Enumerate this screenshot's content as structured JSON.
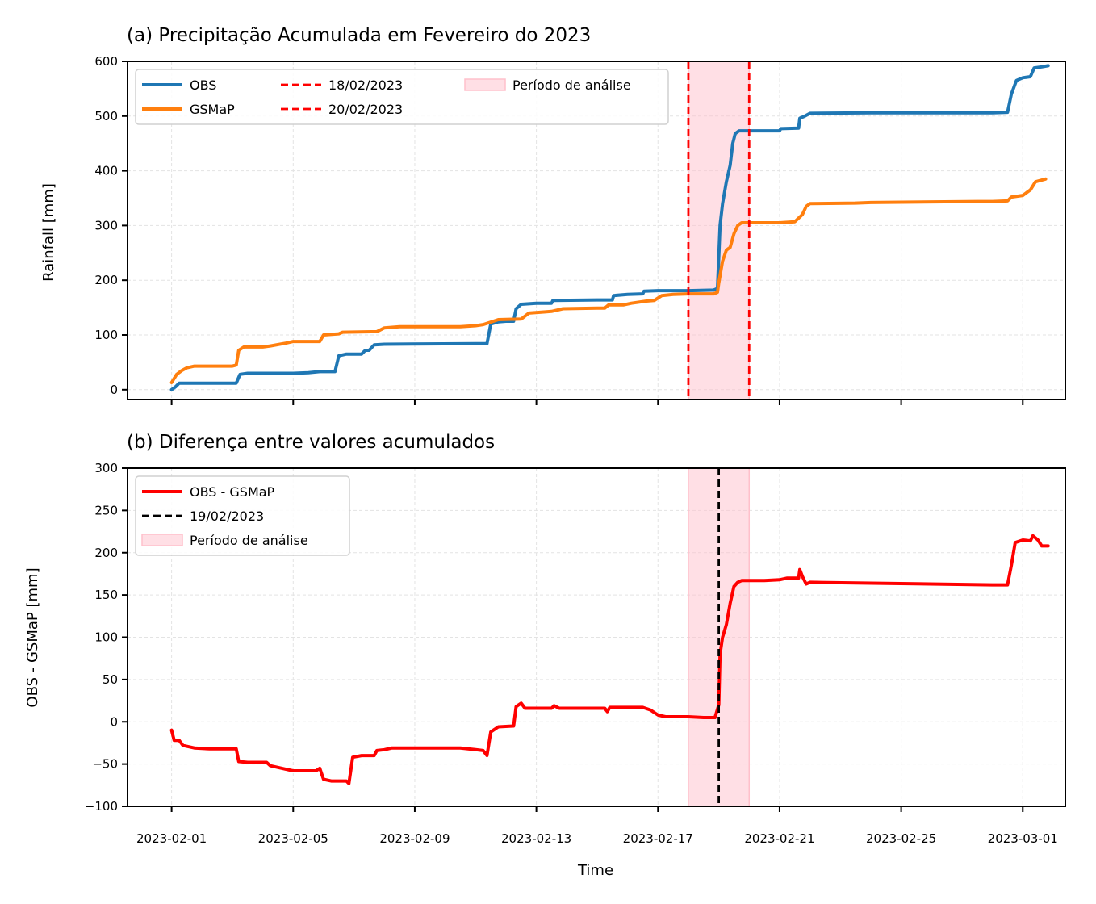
{
  "chart_data": [
    {
      "type": "line",
      "title": "(a) Precipitação Acumulada em Fevereiro do 2023",
      "xlabel": "",
      "ylabel": "Rainfall [mm]",
      "ylim": [
        -18,
        600
      ],
      "yticks": [
        0,
        100,
        200,
        300,
        400,
        500,
        600
      ],
      "x_is_days_from_2023_02_01": true,
      "grid": true,
      "legend_position": "upper-left",
      "legend_entries": [
        {
          "label": "OBS",
          "color": "#1f77b4",
          "style": "solid"
        },
        {
          "label": "GSMaP",
          "color": "#ff7f0e",
          "style": "solid"
        },
        {
          "label": "18/02/2023",
          "color": "#ff0000",
          "style": "dashed"
        },
        {
          "label": "20/02/2023",
          "color": "#ff0000",
          "style": "dashed"
        },
        {
          "label": "Período de análise",
          "color": "#ffc0cb",
          "style": "patch"
        }
      ],
      "vlines": [
        {
          "x": "2023-02-18",
          "color": "#ff0000"
        },
        {
          "x": "2023-02-20",
          "color": "#ff0000"
        }
      ],
      "shaded_span": {
        "x0": "2023-02-18",
        "x1": "2023-02-20",
        "color": "#ffc0cb"
      },
      "series": [
        {
          "name": "OBS",
          "color": "#1f77b4",
          "points": [
            [
              "2023-02-01 00:00",
              0
            ],
            [
              "2023-02-01 03:00",
              5
            ],
            [
              "2023-02-01 06:00",
              12
            ],
            [
              "2023-02-02 00:00",
              12
            ],
            [
              "2023-02-03 00:00",
              12
            ],
            [
              "2023-02-03 03:00",
              12
            ],
            [
              "2023-02-03 06:00",
              28
            ],
            [
              "2023-02-03 12:00",
              30
            ],
            [
              "2023-02-05 00:00",
              30
            ],
            [
              "2023-02-05 12:00",
              31
            ],
            [
              "2023-02-05 21:00",
              33
            ],
            [
              "2023-02-06 09:00",
              33
            ],
            [
              "2023-02-06 12:00",
              62
            ],
            [
              "2023-02-06 18:00",
              65
            ],
            [
              "2023-02-07 06:00",
              65
            ],
            [
              "2023-02-07 09:00",
              72
            ],
            [
              "2023-02-07 12:00",
              72
            ],
            [
              "2023-02-07 16:00",
              82
            ],
            [
              "2023-02-08 00:00",
              83
            ],
            [
              "2023-02-11 00:00",
              84
            ],
            [
              "2023-02-11 09:00",
              84
            ],
            [
              "2023-02-11 12:00",
              120
            ],
            [
              "2023-02-11 18:00",
              124
            ],
            [
              "2023-02-12 00:00",
              125
            ],
            [
              "2023-02-12 06:00",
              125
            ],
            [
              "2023-02-12 08:00",
              148
            ],
            [
              "2023-02-12 12:00",
              156
            ],
            [
              "2023-02-13 00:00",
              158
            ],
            [
              "2023-02-13 12:00",
              158
            ],
            [
              "2023-02-13 13:00",
              163
            ],
            [
              "2023-02-15 00:00",
              164
            ],
            [
              "2023-02-15 12:00",
              164
            ],
            [
              "2023-02-15 13:00",
              172
            ],
            [
              "2023-02-16 00:00",
              174
            ],
            [
              "2023-02-16 12:00",
              175
            ],
            [
              "2023-02-16 13:00",
              180
            ],
            [
              "2023-02-17 00:00",
              181
            ],
            [
              "2023-02-18 00:00",
              181
            ],
            [
              "2023-02-18 20:00",
              182
            ],
            [
              "2023-02-18 23:00",
              185
            ],
            [
              "2023-02-19 01:00",
              300
            ],
            [
              "2023-02-19 03:00",
              340
            ],
            [
              "2023-02-19 06:00",
              380
            ],
            [
              "2023-02-19 09:00",
              410
            ],
            [
              "2023-02-19 11:00",
              450
            ],
            [
              "2023-02-19 13:00",
              468
            ],
            [
              "2023-02-19 16:00",
              473
            ],
            [
              "2023-02-20 00:00",
              473
            ],
            [
              "2023-02-21 00:00",
              473
            ],
            [
              "2023-02-21 01:00",
              477
            ],
            [
              "2023-02-21 15:00",
              478
            ],
            [
              "2023-02-21 16:00",
              496
            ],
            [
              "2023-02-21 20:00",
              500
            ],
            [
              "2023-02-22 00:00",
              505
            ],
            [
              "2023-02-24 00:00",
              506
            ],
            [
              "2023-02-28 00:00",
              506
            ],
            [
              "2023-02-28 12:00",
              507
            ],
            [
              "2023-02-28 15:00",
              540
            ],
            [
              "2023-02-28 19:00",
              565
            ],
            [
              "2023-03-01 00:00",
              570
            ],
            [
              "2023-03-01 06:00",
              572
            ],
            [
              "2023-03-01 09:00",
              588
            ],
            [
              "2023-03-01 15:00",
              590
            ],
            [
              "2023-03-01 20:00",
              592
            ]
          ]
        },
        {
          "name": "GSMaP",
          "color": "#ff7f0e",
          "points": [
            [
              "2023-02-01 00:00",
              13
            ],
            [
              "2023-02-01 04:00",
              28
            ],
            [
              "2023-02-01 08:00",
              35
            ],
            [
              "2023-02-01 12:00",
              40
            ],
            [
              "2023-02-01 18:00",
              43
            ],
            [
              "2023-02-02 06:00",
              43
            ],
            [
              "2023-02-03 00:00",
              43
            ],
            [
              "2023-02-03 03:00",
              45
            ],
            [
              "2023-02-03 05:00",
              72
            ],
            [
              "2023-02-03 09:00",
              78
            ],
            [
              "2023-02-04 00:00",
              78
            ],
            [
              "2023-02-04 06:00",
              80
            ],
            [
              "2023-02-04 18:00",
              85
            ],
            [
              "2023-02-05 00:00",
              88
            ],
            [
              "2023-02-05 21:00",
              88
            ],
            [
              "2023-02-06 00:00",
              100
            ],
            [
              "2023-02-06 12:00",
              102
            ],
            [
              "2023-02-06 15:00",
              105
            ],
            [
              "2023-02-07 18:00",
              106
            ],
            [
              "2023-02-08 00:00",
              113
            ],
            [
              "2023-02-08 12:00",
              115
            ],
            [
              "2023-02-10 12:00",
              115
            ],
            [
              "2023-02-11 00:00",
              117
            ],
            [
              "2023-02-11 06:00",
              119
            ],
            [
              "2023-02-11 18:00",
              128
            ],
            [
              "2023-02-12 12:00",
              129
            ],
            [
              "2023-02-12 18:00",
              140
            ],
            [
              "2023-02-13 06:00",
              142
            ],
            [
              "2023-02-13 12:00",
              143
            ],
            [
              "2023-02-13 21:00",
              148
            ],
            [
              "2023-02-15 00:00",
              149
            ],
            [
              "2023-02-15 06:00",
              149
            ],
            [
              "2023-02-15 09:00",
              155
            ],
            [
              "2023-02-15 21:00",
              155
            ],
            [
              "2023-02-16 03:00",
              158
            ],
            [
              "2023-02-16 15:00",
              162
            ],
            [
              "2023-02-16 21:00",
              163
            ],
            [
              "2023-02-17 03:00",
              172
            ],
            [
              "2023-02-17 12:00",
              174
            ],
            [
              "2023-02-18 00:00",
              175
            ],
            [
              "2023-02-18 20:00",
              175
            ],
            [
              "2023-02-18 23:00",
              178
            ],
            [
              "2023-02-19 00:00",
              195
            ],
            [
              "2023-02-19 03:00",
              235
            ],
            [
              "2023-02-19 06:00",
              255
            ],
            [
              "2023-02-19 09:00",
              260
            ],
            [
              "2023-02-19 12:00",
              285
            ],
            [
              "2023-02-19 15:00",
              300
            ],
            [
              "2023-02-19 18:00",
              305
            ],
            [
              "2023-02-20 00:00",
              305
            ],
            [
              "2023-02-21 00:00",
              305
            ],
            [
              "2023-02-21 12:00",
              307
            ],
            [
              "2023-02-21 18:00",
              320
            ],
            [
              "2023-02-21 21:00",
              335
            ],
            [
              "2023-02-22 00:00",
              340
            ],
            [
              "2023-02-23 12:00",
              341
            ],
            [
              "2023-02-24 00:00",
              342
            ],
            [
              "2023-02-27 12:00",
              344
            ],
            [
              "2023-02-28 00:00",
              344
            ],
            [
              "2023-02-28 12:00",
              345
            ],
            [
              "2023-02-28 15:00",
              352
            ],
            [
              "2023-03-01 00:00",
              355
            ],
            [
              "2023-03-01 06:00",
              365
            ],
            [
              "2023-03-01 10:00",
              380
            ],
            [
              "2023-03-01 18:00",
              385
            ]
          ]
        }
      ]
    },
    {
      "type": "line",
      "title": "(b) Diferença entre valores acumulados",
      "xlabel": "Time",
      "ylabel": "OBS - GSMaP [mm]",
      "ylim": [
        -100,
        300
      ],
      "yticks": [
        -100,
        -50,
        0,
        50,
        100,
        150,
        200,
        250,
        300
      ],
      "xticks": [
        "2023-02-01",
        "2023-02-05",
        "2023-02-09",
        "2023-02-13",
        "2023-02-17",
        "2023-02-21",
        "2023-02-25",
        "2023-03-01"
      ],
      "grid": true,
      "legend_position": "upper-left",
      "legend_entries": [
        {
          "label": "OBS - GSMaP",
          "color": "#ff0000",
          "style": "solid"
        },
        {
          "label": "19/02/2023",
          "color": "#000000",
          "style": "dashed"
        },
        {
          "label": "Período de análise",
          "color": "#ffc0cb",
          "style": "patch"
        }
      ],
      "vlines": [
        {
          "x": "2023-02-19",
          "color": "#000000"
        }
      ],
      "shaded_span": {
        "x0": "2023-02-18",
        "x1": "2023-02-20",
        "color": "#ffc0cb"
      },
      "series": [
        {
          "name": "OBS - GSMaP",
          "color": "#ff0000",
          "points": [
            [
              "2023-02-01 00:00",
              -10
            ],
            [
              "2023-02-01 02:00",
              -22
            ],
            [
              "2023-02-01 06:00",
              -22
            ],
            [
              "2023-02-01 09:00",
              -28
            ],
            [
              "2023-02-01 18:00",
              -31
            ],
            [
              "2023-02-02 06:00",
              -32
            ],
            [
              "2023-02-03 03:00",
              -32
            ],
            [
              "2023-02-03 05:00",
              -47
            ],
            [
              "2023-02-03 12:00",
              -48
            ],
            [
              "2023-02-04 03:00",
              -48
            ],
            [
              "2023-02-04 06:00",
              -52
            ],
            [
              "2023-02-04 18:00",
              -56
            ],
            [
              "2023-02-05 00:00",
              -58
            ],
            [
              "2023-02-05 18:00",
              -58
            ],
            [
              "2023-02-05 21:00",
              -55
            ],
            [
              "2023-02-06 00:00",
              -68
            ],
            [
              "2023-02-06 06:00",
              -70
            ],
            [
              "2023-02-06 18:00",
              -70
            ],
            [
              "2023-02-06 20:00",
              -73
            ],
            [
              "2023-02-06 23:00",
              -42
            ],
            [
              "2023-02-07 06:00",
              -40
            ],
            [
              "2023-02-07 16:00",
              -40
            ],
            [
              "2023-02-07 18:00",
              -34
            ],
            [
              "2023-02-08 00:00",
              -33
            ],
            [
              "2023-02-08 06:00",
              -31
            ],
            [
              "2023-02-10 12:00",
              -31
            ],
            [
              "2023-02-11 00:00",
              -33
            ],
            [
              "2023-02-11 06:00",
              -34
            ],
            [
              "2023-02-11 09:00",
              -40
            ],
            [
              "2023-02-11 12:00",
              -12
            ],
            [
              "2023-02-11 18:00",
              -6
            ],
            [
              "2023-02-12 06:00",
              -5
            ],
            [
              "2023-02-12 08:00",
              18
            ],
            [
              "2023-02-12 12:00",
              22
            ],
            [
              "2023-02-12 15:00",
              16
            ],
            [
              "2023-02-13 12:00",
              16
            ],
            [
              "2023-02-13 14:00",
              19
            ],
            [
              "2023-02-13 18:00",
              16
            ],
            [
              "2023-02-15 00:00",
              16
            ],
            [
              "2023-02-15 06:00",
              16
            ],
            [
              "2023-02-15 08:00",
              12
            ],
            [
              "2023-02-15 10:00",
              17
            ],
            [
              "2023-02-16 12:00",
              17
            ],
            [
              "2023-02-16 18:00",
              14
            ],
            [
              "2023-02-17 00:00",
              8
            ],
            [
              "2023-02-17 06:00",
              6
            ],
            [
              "2023-02-18 00:00",
              6
            ],
            [
              "2023-02-18 12:00",
              5
            ],
            [
              "2023-02-18 21:00",
              5
            ],
            [
              "2023-02-19 00:00",
              20
            ],
            [
              "2023-02-19 01:00",
              80
            ],
            [
              "2023-02-19 03:00",
              100
            ],
            [
              "2023-02-19 06:00",
              115
            ],
            [
              "2023-02-19 09:00",
              140
            ],
            [
              "2023-02-19 12:00",
              160
            ],
            [
              "2023-02-19 15:00",
              165
            ],
            [
              "2023-02-19 18:00",
              167
            ],
            [
              "2023-02-20 12:00",
              167
            ],
            [
              "2023-02-21 00:00",
              168
            ],
            [
              "2023-02-21 06:00",
              170
            ],
            [
              "2023-02-21 15:00",
              170
            ],
            [
              "2023-02-21 16:00",
              180
            ],
            [
              "2023-02-21 18:00",
              172
            ],
            [
              "2023-02-21 21:00",
              163
            ],
            [
              "2023-02-22 00:00",
              165
            ],
            [
              "2023-02-24 00:00",
              164
            ],
            [
              "2023-02-28 00:00",
              162
            ],
            [
              "2023-02-28 12:00",
              162
            ],
            [
              "2023-02-28 15:00",
              185
            ],
            [
              "2023-02-28 18:00",
              212
            ],
            [
              "2023-03-01 00:00",
              215
            ],
            [
              "2023-03-01 06:00",
              214
            ],
            [
              "2023-03-01 08:00",
              220
            ],
            [
              "2023-03-01 12:00",
              215
            ],
            [
              "2023-03-01 15:00",
              208
            ],
            [
              "2023-03-01 20:00",
              208
            ]
          ]
        }
      ]
    }
  ]
}
